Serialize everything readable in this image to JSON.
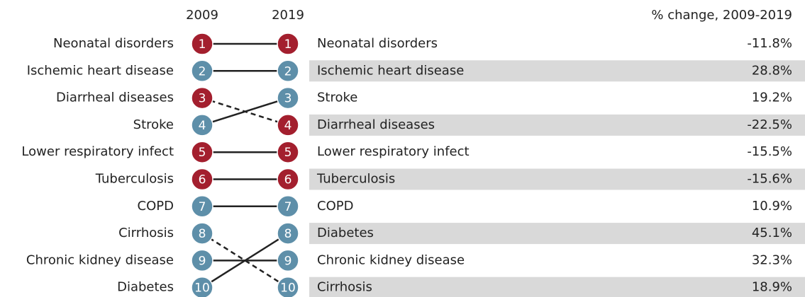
{
  "chart_data": {
    "type": "rank",
    "columns": [
      "2009",
      "2019"
    ],
    "change_title": "% change, 2009-2019",
    "left": {
      "categories": [
        "Neonatal disorders",
        "Ischemic heart disease",
        "Diarrheal diseases",
        "Stroke",
        "Lower respiratory infect",
        "Tuberculosis",
        "COPD",
        "Cirrhosis",
        "Chronic kidney disease",
        "Diabetes"
      ],
      "ranks": [
        1,
        2,
        3,
        4,
        5,
        6,
        7,
        8,
        9,
        10
      ],
      "colors": [
        "#a31f2e",
        "#5e8fa9",
        "#a31f2e",
        "#5e8fa9",
        "#a31f2e",
        "#a31f2e",
        "#5e8fa9",
        "#5e8fa9",
        "#5e8fa9",
        "#5e8fa9"
      ]
    },
    "right": {
      "categories": [
        "Neonatal disorders",
        "Ischemic heart disease",
        "Stroke",
        "Diarrheal diseases",
        "Lower respiratory infect",
        "Tuberculosis",
        "COPD",
        "Diabetes",
        "Chronic kidney disease",
        "Cirrhosis"
      ],
      "ranks": [
        1,
        2,
        3,
        4,
        5,
        6,
        7,
        8,
        9,
        10
      ],
      "colors": [
        "#a31f2e",
        "#5e8fa9",
        "#5e8fa9",
        "#a31f2e",
        "#a31f2e",
        "#a31f2e",
        "#5e8fa9",
        "#5e8fa9",
        "#5e8fa9",
        "#5e8fa9"
      ],
      "changes": [
        "-11.8%",
        "28.8%",
        "19.2%",
        "-22.5%",
        "-15.5%",
        "-15.6%",
        "10.9%",
        "45.1%",
        "32.3%",
        "18.9%"
      ]
    },
    "band_color": "#d9d9d9"
  }
}
